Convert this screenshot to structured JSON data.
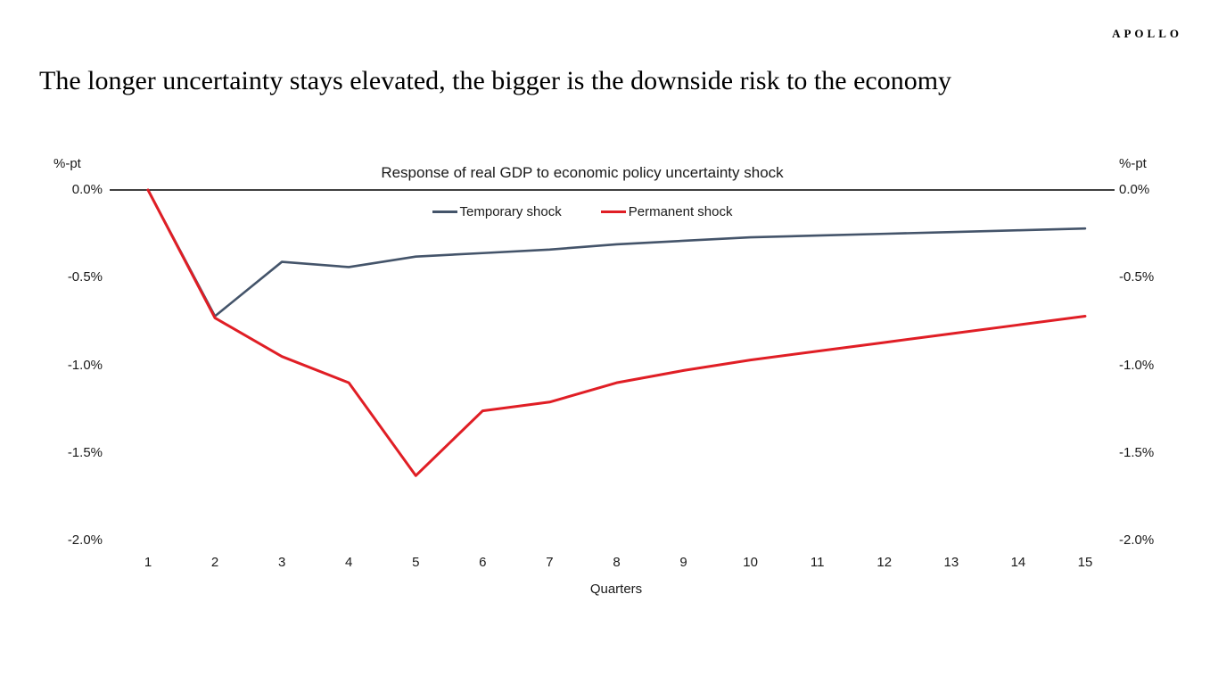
{
  "brand": {
    "logo": "APOLLO"
  },
  "page_title": "The longer uncertainty stays elevated, the bigger is the downside risk to the economy",
  "chart_data": {
    "type": "line",
    "title": "Response of real GDP to economic policy uncertainty shock",
    "xlabel": "Quarters",
    "ylabel_left": "%-pt",
    "ylabel_right": "%-pt",
    "x": [
      1,
      2,
      3,
      4,
      5,
      6,
      7,
      8,
      9,
      10,
      11,
      12,
      13,
      14,
      15
    ],
    "series": [
      {
        "name": "Temporary shock",
        "color": "#44546a",
        "values": [
          0.0,
          -0.72,
          -0.41,
          -0.44,
          -0.38,
          -0.36,
          -0.34,
          -0.31,
          -0.29,
          -0.27,
          -0.26,
          -0.25,
          -0.24,
          -0.23,
          -0.22
        ]
      },
      {
        "name": "Permanent shock",
        "color": "#e01e25",
        "values": [
          0.0,
          -0.73,
          -0.95,
          -1.1,
          -1.63,
          -1.26,
          -1.21,
          -1.1,
          -1.03,
          -0.97,
          -0.92,
          -0.87,
          -0.82,
          -0.77,
          -0.72
        ]
      }
    ],
    "ylim": [
      -2.0,
      0.0
    ],
    "ytick_labels": [
      "0.0%",
      "-0.5%",
      "-1.0%",
      "-1.5%",
      "-2.0%"
    ],
    "ytick_values": [
      0.0,
      -0.5,
      -1.0,
      -1.5,
      -2.0
    ],
    "grid": false,
    "legend_position": "top",
    "axis_line_color": "#000000"
  }
}
